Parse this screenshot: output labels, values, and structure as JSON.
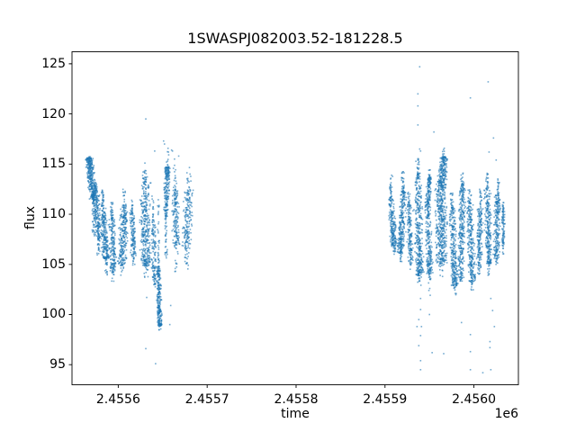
{
  "chart_data": {
    "type": "scatter",
    "title": "1SWASPJ082003.52-181228.5",
    "xlabel": "time",
    "ylabel": "flux",
    "offset_text": "1e6",
    "grid": false,
    "legend": "none",
    "marker_color": "#1f77b4",
    "background_color": "#ffffff",
    "xlim": [
      2455548,
      2456050
    ],
    "ylim": [
      93.0,
      126.2
    ],
    "xtick_values": [
      2455600,
      2455700,
      2455800,
      2455900,
      2456000
    ],
    "xtick_labels": [
      "2.4556",
      "2.4557",
      "2.4558",
      "2.4559",
      "2.4560"
    ],
    "ytick_values": [
      95,
      100,
      105,
      110,
      115,
      120,
      125
    ],
    "ytick_labels": [
      "95",
      "100",
      "105",
      "110",
      "115",
      "120",
      "125"
    ],
    "night_fields": [
      "t_start",
      "t_end",
      "flux_lo",
      "flux_hi",
      "n_core",
      "tail_up_max",
      "n_up",
      "tail_down_min",
      "n_down",
      "tilt",
      "density_bias"
    ],
    "nights": [
      [
        2455565,
        2455574,
        111.5,
        115.6,
        300,
        115.9,
        8,
        107.8,
        45,
        0.7,
        -1
      ],
      [
        2455572,
        2455580,
        107.6,
        112.8,
        200,
        113.5,
        15,
        105.8,
        25,
        0.6,
        0
      ],
      [
        2455580,
        2455589,
        105.6,
        110.8,
        220,
        112.5,
        30,
        103.9,
        20,
        0.5,
        1
      ],
      [
        2455589,
        2455598,
        104.3,
        109.6,
        170,
        111.2,
        25,
        103.0,
        12,
        0.2,
        0
      ],
      [
        2455600,
        2455611,
        104.9,
        110.6,
        230,
        112.6,
        25,
        103.8,
        10,
        -0.3,
        0
      ],
      [
        2455613,
        2455620,
        105.6,
        110.2,
        130,
        111.6,
        15,
        104.8,
        8,
        0.3,
        0
      ],
      [
        2455624,
        2455637,
        104.9,
        113.2,
        330,
        114.6,
        25,
        103.6,
        15,
        0.1,
        1
      ],
      [
        2455637,
        2455643,
        103.3,
        109.2,
        110,
        112.2,
        20,
        102.5,
        8,
        0.4,
        0
      ],
      [
        2455643,
        2455649,
        98.9,
        104.6,
        230,
        111.6,
        40,
        98.3,
        8,
        0.35,
        1
      ],
      [
        2455651,
        2455658,
        110.4,
        114.7,
        170,
        116.6,
        10,
        105.6,
        55,
        -0.3,
        -1
      ],
      [
        2455660,
        2455669,
        107.0,
        112.4,
        150,
        115.8,
        18,
        104.2,
        18,
        0.2,
        0
      ],
      [
        2455672,
        2455684,
        106.6,
        112.4,
        170,
        114.9,
        15,
        104.4,
        20,
        -0.2,
        0
      ],
      [
        2455904,
        2455913,
        106.8,
        111.6,
        190,
        113.9,
        30,
        105.9,
        12,
        0.5,
        1
      ],
      [
        2455915,
        2455923,
        106.1,
        112.2,
        230,
        114.3,
        35,
        105.2,
        10,
        -0.4,
        1
      ],
      [
        2455924,
        2455932,
        105.3,
        110.9,
        150,
        112.2,
        18,
        104.5,
        8,
        0.3,
        0
      ],
      [
        2455933,
        2455943,
        103.9,
        113.6,
        340,
        115.6,
        35,
        102.9,
        12,
        0.2,
        1
      ],
      [
        2455945,
        2455953,
        104.1,
        111.2,
        220,
        113.0,
        20,
        101.6,
        14,
        0.4,
        1
      ],
      [
        2455947,
        2455952,
        111.0,
        113.7,
        90,
        114.5,
        8,
        110.5,
        0,
        -0.3,
        -1
      ],
      [
        2455956,
        2455970,
        105.1,
        113.1,
        420,
        114.8,
        40,
        103.6,
        15,
        0.1,
        0
      ],
      [
        2455961,
        2455970,
        112.6,
        115.7,
        160,
        116.8,
        12,
        112.0,
        0,
        -0.2,
        -1
      ],
      [
        2455973,
        2455981,
        102.9,
        110.6,
        260,
        112.1,
        25,
        101.8,
        10,
        0.5,
        1
      ],
      [
        2455982,
        2455990,
        103.6,
        112.9,
        280,
        114.1,
        20,
        102.9,
        8,
        -0.3,
        0
      ],
      [
        2455992,
        2456001,
        103.3,
        111.1,
        250,
        112.6,
        20,
        102.1,
        12,
        0.4,
        1
      ],
      [
        2456003,
        2456010,
        104.6,
        110.6,
        170,
        112.6,
        20,
        103.8,
        8,
        -0.2,
        0
      ],
      [
        2456012,
        2456020,
        105.1,
        112.4,
        240,
        114.1,
        25,
        103.9,
        12,
        0.3,
        1
      ],
      [
        2456022,
        2456030,
        105.6,
        111.9,
        210,
        113.6,
        20,
        104.8,
        10,
        -0.3,
        0
      ],
      [
        2456031,
        2456035,
        106.6,
        110.6,
        80,
        111.6,
        8,
        105.8,
        5,
        0.0,
        0
      ]
    ],
    "outliers": [
      [
        2455631,
        119.5
      ],
      [
        2455651,
        117.3
      ],
      [
        2455652,
        117.0
      ],
      [
        2455660,
        116.4
      ],
      [
        2455661,
        116.3
      ],
      [
        2455641,
        116.3
      ],
      [
        2455630,
        115.1
      ],
      [
        2455668,
        115.8
      ],
      [
        2455631,
        96.6
      ],
      [
        2455642,
        95.1
      ],
      [
        2455632,
        101.7
      ],
      [
        2455659,
        100.9
      ],
      [
        2455658,
        99.0
      ],
      [
        2455939,
        124.7
      ],
      [
        2456016,
        123.2
      ],
      [
        2455937,
        122.0
      ],
      [
        2455996,
        121.6
      ],
      [
        2455937,
        120.8
      ],
      [
        2455937,
        118.9
      ],
      [
        2455955,
        118.2
      ],
      [
        2456022,
        117.6
      ],
      [
        2455939,
        116.5
      ],
      [
        2455940,
        116.3
      ],
      [
        2455965,
        116.0
      ],
      [
        2456017,
        116.2
      ],
      [
        2455937,
        115.4
      ],
      [
        2456025,
        115.4
      ],
      [
        2455940,
        101.6
      ],
      [
        2455940,
        100.5
      ],
      [
        2455950,
        100.0
      ],
      [
        2455938,
        99.5
      ],
      [
        2455936,
        98.8
      ],
      [
        2455941,
        98.8
      ],
      [
        2455940,
        97.9
      ],
      [
        2455938,
        96.9
      ],
      [
        2455953,
        96.2
      ],
      [
        2455966,
        96.1
      ],
      [
        2455940,
        95.4
      ],
      [
        2455940,
        94.5
      ],
      [
        2455996,
        98.0
      ],
      [
        2455986,
        99.2
      ],
      [
        2455996,
        96.3
      ],
      [
        2455996,
        94.5
      ],
      [
        2456019,
        101.6
      ],
      [
        2456021,
        100.4
      ],
      [
        2456023,
        98.8
      ],
      [
        2456018,
        97.3
      ],
      [
        2456018,
        96.7
      ],
      [
        2456019,
        94.5
      ],
      [
        2456010,
        94.2
      ]
    ]
  }
}
